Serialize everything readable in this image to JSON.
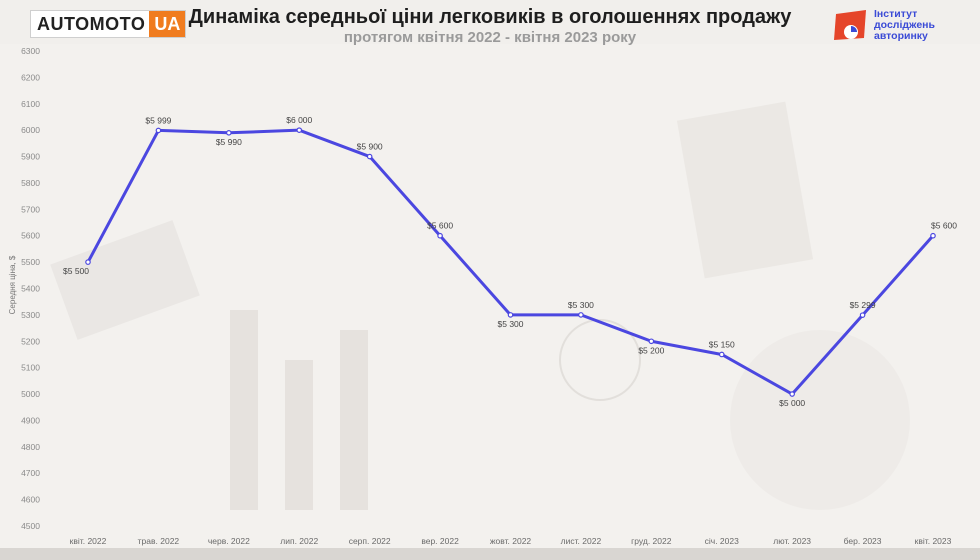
{
  "header": {
    "brand_left_main": "AUTOMOTO",
    "brand_left_suffix": "UA",
    "title": "Динаміка середньої ціни легковиків в оголошеннях продажу",
    "subtitle": "протягом квітня 2022 - квітня 2023 року",
    "brand_right_line1": "Інститут",
    "brand_right_line2": "досліджень",
    "brand_right_line3": "авторинку"
  },
  "colors": {
    "line": "#4b47e0",
    "brand_orange": "#f07c1f",
    "brand_blue": "#3b4bd6",
    "brand_red": "#e5452a"
  },
  "chart_data": {
    "type": "line",
    "title": "Динаміка середньої ціни легковиків в оголошеннях продажу",
    "subtitle": "протягом квітня 2022 - квітня 2023 року",
    "xlabel": "",
    "ylabel": "Середня ціна, $",
    "ylim": [
      4500,
      6300
    ],
    "yticks": [
      4500,
      4600,
      4700,
      4800,
      4900,
      5000,
      5100,
      5200,
      5300,
      5400,
      5500,
      5600,
      5700,
      5800,
      5900,
      6000,
      6100,
      6200,
      6300
    ],
    "grid": false,
    "categories": [
      "квіт. 2022",
      "трав. 2022",
      "черв. 2022",
      "лип. 2022",
      "серп. 2022",
      "вер. 2022",
      "жовт. 2022",
      "лист. 2022",
      "груд. 2022",
      "січ. 2023",
      "лют. 2023",
      "бер. 2023",
      "квіт. 2023"
    ],
    "series": [
      {
        "values": [
          5500,
          5999,
          5990,
          6000,
          5900,
          5600,
          5300,
          5300,
          5200,
          5150,
          5000,
          5299,
          5600
        ],
        "labels": [
          "$5 500",
          "$5 999",
          "$5 990",
          "$6 000",
          "$5 900",
          "$5 600",
          "$5 300",
          "$5 300",
          "$5 200",
          "$5 150",
          "$5 000",
          "$5 299",
          "$5 600"
        ],
        "label_positions": [
          "below",
          "above",
          "below",
          "above",
          "above",
          "above",
          "below",
          "above",
          "below",
          "above",
          "below",
          "above",
          "above"
        ]
      }
    ]
  }
}
